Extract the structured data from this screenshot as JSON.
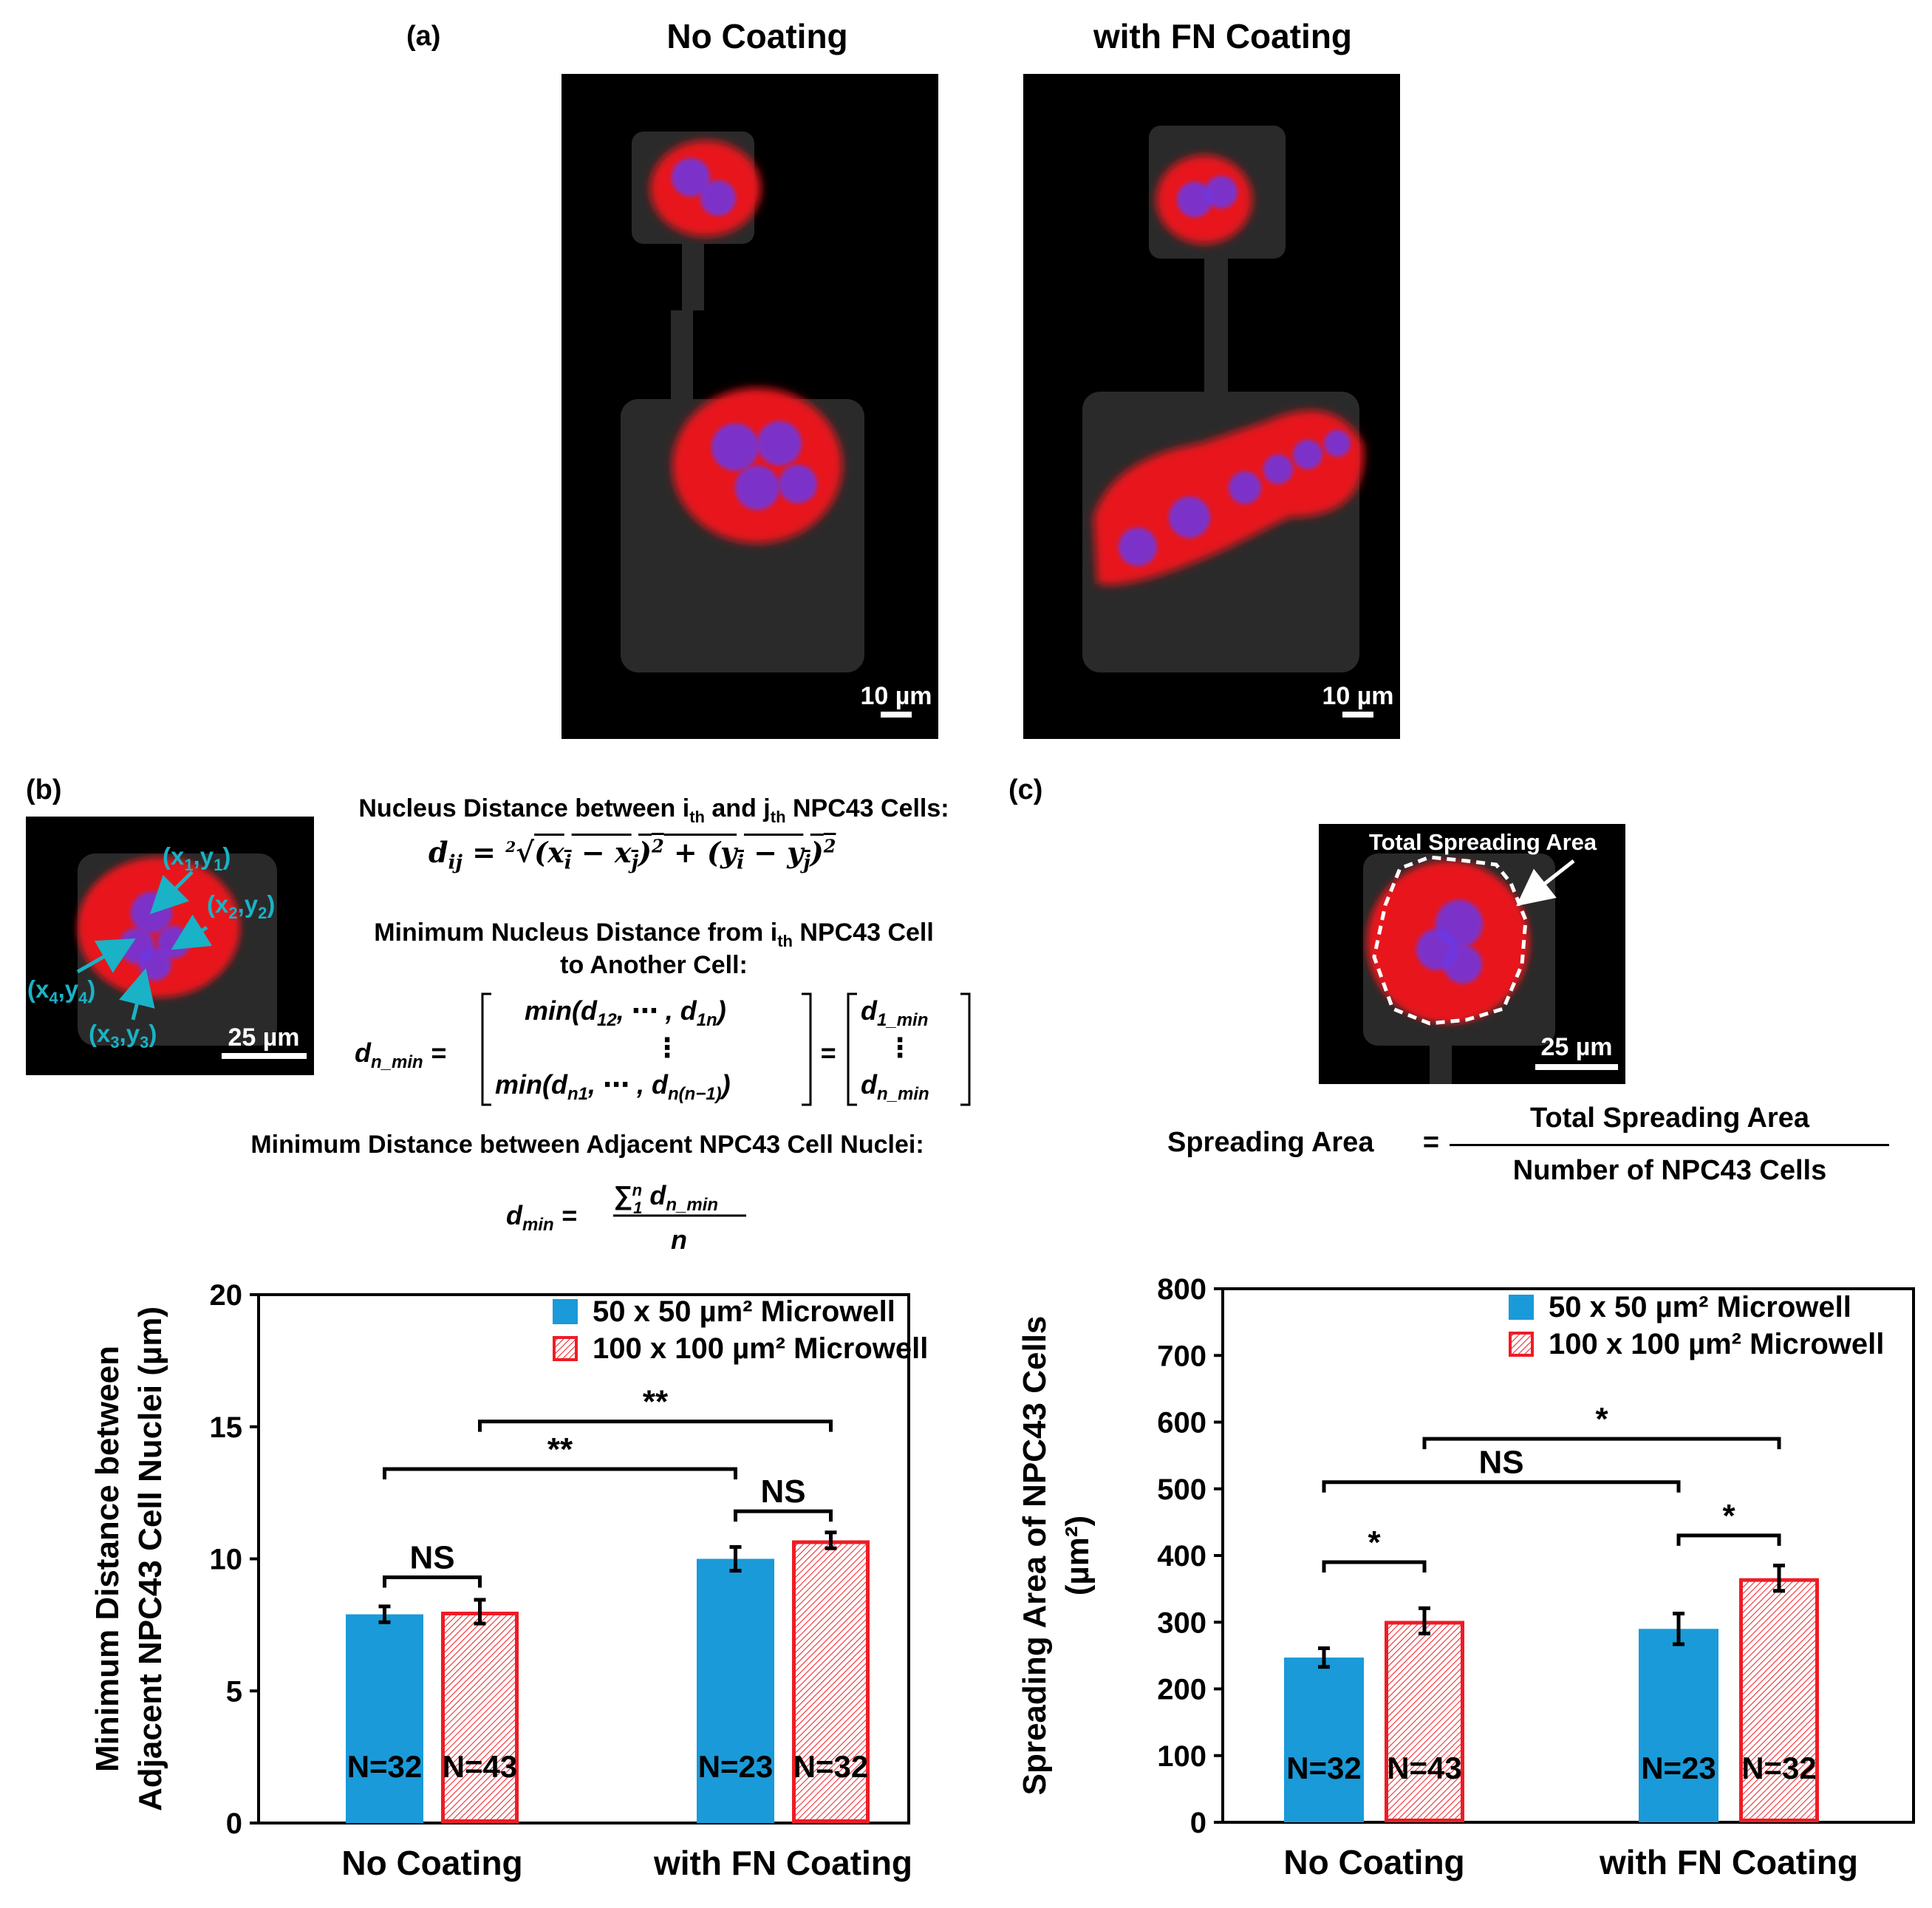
{
  "panel_a": {
    "label": "(a)",
    "col1_title": "No Coating",
    "col2_title": "with FN Coating",
    "scale_left": "10 µm",
    "scale_right": "10 µm"
  },
  "panel_b": {
    "label": "(b)",
    "scale": "25 µm",
    "coords": [
      "(x1,y1)",
      "(x2,y2)",
      "(x3,y3)",
      "(x4,y4)"
    ],
    "eq1_title": "Nucleus Distance between ith and jth NPC43 Cells:",
    "eq2_title_line1": "Minimum Nucleus Distance from ith NPC43 Cell",
    "eq2_title_line2": "to Another Cell:",
    "eq3_title": "Minimum Distance between Adjacent NPC43 Cell Nuclei:"
  },
  "panel_c": {
    "label": "(c)",
    "image_annotation": "Total Spreading Area",
    "scale": "25 µm",
    "formula_lhs": "Spreading Area",
    "formula_eq": "=",
    "formula_num": "Total Spreading Area",
    "formula_den": "Number of NPC43 Cells"
  },
  "colors": {
    "blue_bar": "#1a9ad8",
    "red_bar": "#ee1c25",
    "cyan_label": "#1ab2c6",
    "actin_red": "#e8191c",
    "nucleus_blue": "#6a39e8"
  },
  "chart_data": [
    {
      "type": "bar",
      "ylabel": "Minimum Distance between Adjacent NPC43 Cell Nuclei (µm)",
      "ylabel_line1": "Minimum Distance between",
      "ylabel_line2": "Adjacent NPC43 Cell Nuclei (µm)",
      "ylim": [
        0,
        20
      ],
      "yticks": [
        0,
        5,
        10,
        15,
        20
      ],
      "categories": [
        "No Coating",
        "with FN Coating"
      ],
      "legend": [
        "50 x 50 µm² Microwell",
        "100 x 100 µm² Microwell"
      ],
      "legend_position": "top-right",
      "series": [
        {
          "name": "50 x 50 µm² Microwell",
          "values": [
            7.9,
            10.0
          ],
          "errors": [
            0.3,
            0.45
          ],
          "n_labels": [
            "N=32",
            "N=23"
          ]
        },
        {
          "name": "100 x 100 µm² Microwell",
          "values": [
            8.0,
            10.7
          ],
          "errors": [
            0.45,
            0.3
          ],
          "n_labels": [
            "N=43",
            "N=32"
          ]
        }
      ],
      "significance": [
        {
          "label": "NS",
          "from": [
            0,
            0
          ],
          "to": [
            0,
            1
          ],
          "level": 9.3
        },
        {
          "label": "NS",
          "from": [
            1,
            0
          ],
          "to": [
            1,
            1
          ],
          "level": 11.8
        },
        {
          "label": "**",
          "from": [
            0,
            0
          ],
          "to": [
            1,
            0
          ],
          "level": 13.4
        },
        {
          "label": "**",
          "from": [
            0,
            1
          ],
          "to": [
            1,
            1
          ],
          "level": 15.2
        }
      ]
    },
    {
      "type": "bar",
      "ylabel": "Spreading Area of NPC43 Cells (µm²)",
      "ylabel_line1": "Spreading Area of NPC43 Cells",
      "ylabel_line2": "(µm²)",
      "ylim": [
        0,
        800
      ],
      "yticks": [
        0,
        100,
        200,
        300,
        400,
        500,
        600,
        700,
        800
      ],
      "categories": [
        "No Coating",
        "with FN Coating"
      ],
      "legend": [
        "50 x 50 µm² Microwell",
        "100 x 100 µm² Microwell"
      ],
      "legend_position": "top-right",
      "series": [
        {
          "name": "50 x 50 µm² Microwell",
          "values": [
            247,
            290
          ],
          "errors": [
            14,
            23
          ],
          "n_labels": [
            "N=32",
            "N=23"
          ]
        },
        {
          "name": "100 x 100 µm² Microwell",
          "values": [
            302,
            366
          ],
          "errors": [
            19,
            19
          ],
          "n_labels": [
            "N=43",
            "N=32"
          ]
        }
      ],
      "significance": [
        {
          "label": "*",
          "from": [
            0,
            0
          ],
          "to": [
            0,
            1
          ],
          "level": 390
        },
        {
          "label": "*",
          "from": [
            1,
            0
          ],
          "to": [
            1,
            1
          ],
          "level": 430
        },
        {
          "label": "NS",
          "from": [
            0,
            0
          ],
          "to": [
            1,
            0
          ],
          "level": 510
        },
        {
          "label": "*",
          "from": [
            0,
            1
          ],
          "to": [
            1,
            1
          ],
          "level": 575
        }
      ]
    }
  ]
}
